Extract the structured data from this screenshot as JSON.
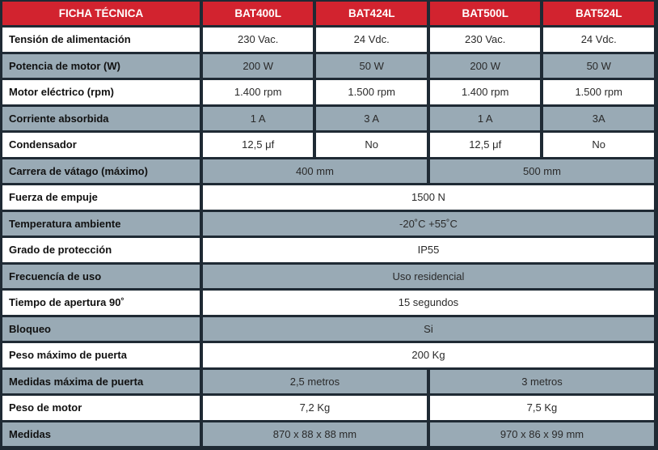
{
  "header": {
    "label": "FICHA TÉCNICA",
    "models": [
      "BAT400L",
      "BAT424L",
      "BAT500L",
      "BAT524L"
    ]
  },
  "rows": [
    {
      "label": "Tensión de alimentación",
      "cells": [
        {
          "value": "230 Vac.",
          "span": 1
        },
        {
          "value": "24 Vdc.",
          "span": 1
        },
        {
          "value": "230 Vac.",
          "span": 1
        },
        {
          "value": "24 Vdc.",
          "span": 1
        }
      ]
    },
    {
      "label": "Potencia de motor (W)",
      "cells": [
        {
          "value": "200 W",
          "span": 1
        },
        {
          "value": "50 W",
          "span": 1
        },
        {
          "value": "200 W",
          "span": 1
        },
        {
          "value": "50 W",
          "span": 1
        }
      ]
    },
    {
      "label": "Motor eléctrico (rpm)",
      "cells": [
        {
          "value": "1.400 rpm",
          "span": 1
        },
        {
          "value": "1.500 rpm",
          "span": 1
        },
        {
          "value": "1.400 rpm",
          "span": 1
        },
        {
          "value": "1.500 rpm",
          "span": 1
        }
      ]
    },
    {
      "label": "Corriente absorbida",
      "cells": [
        {
          "value": "1 A",
          "span": 1
        },
        {
          "value": "3 A",
          "span": 1
        },
        {
          "value": "1 A",
          "span": 1
        },
        {
          "value": "3A",
          "span": 1
        }
      ]
    },
    {
      "label": "Condensador",
      "cells": [
        {
          "value": "12,5 μf",
          "span": 1
        },
        {
          "value": "No",
          "span": 1
        },
        {
          "value": "12,5 μf",
          "span": 1
        },
        {
          "value": "No",
          "span": 1
        }
      ]
    },
    {
      "label": "Carrera de vátago (máximo)",
      "cells": [
        {
          "value": "400 mm",
          "span": 2
        },
        {
          "value": "500 mm",
          "span": 2
        }
      ]
    },
    {
      "label": "Fuerza de empuje",
      "cells": [
        {
          "value": "1500 N",
          "span": 4
        }
      ]
    },
    {
      "label": "Temperatura ambiente",
      "cells": [
        {
          "value": "-20˚C +55˚C",
          "span": 4
        }
      ]
    },
    {
      "label": "Grado de protección",
      "cells": [
        {
          "value": "IP55",
          "span": 4
        }
      ]
    },
    {
      "label": "Frecuencía de uso",
      "cells": [
        {
          "value": "Uso residencial",
          "span": 4
        }
      ]
    },
    {
      "label": "Tiempo de apertura 90˚",
      "cells": [
        {
          "value": "15 segundos",
          "span": 4
        }
      ]
    },
    {
      "label": "Bloqueo",
      "cells": [
        {
          "value": "Si",
          "span": 4
        }
      ]
    },
    {
      "label": "Peso máximo de puerta",
      "cells": [
        {
          "value": "200 Kg",
          "span": 4
        }
      ]
    },
    {
      "label": "Medidas máxima de puerta",
      "cells": [
        {
          "value": "2,5 metros",
          "span": 2
        },
        {
          "value": "3 metros",
          "span": 2
        }
      ]
    },
    {
      "label": "Peso de motor",
      "cells": [
        {
          "value": "7,2 Kg",
          "span": 2
        },
        {
          "value": "7,5 Kg",
          "span": 2
        }
      ]
    },
    {
      "label": "Medidas",
      "cells": [
        {
          "value": "870 x 88 x 88 mm",
          "span": 2
        },
        {
          "value": "970 x 86 x 99 mm",
          "span": 2
        }
      ]
    }
  ],
  "colors": {
    "header_bg": "#d2232f",
    "row_white": "#ffffff",
    "row_grey": "#99aab5",
    "border": "#1f2a34"
  }
}
